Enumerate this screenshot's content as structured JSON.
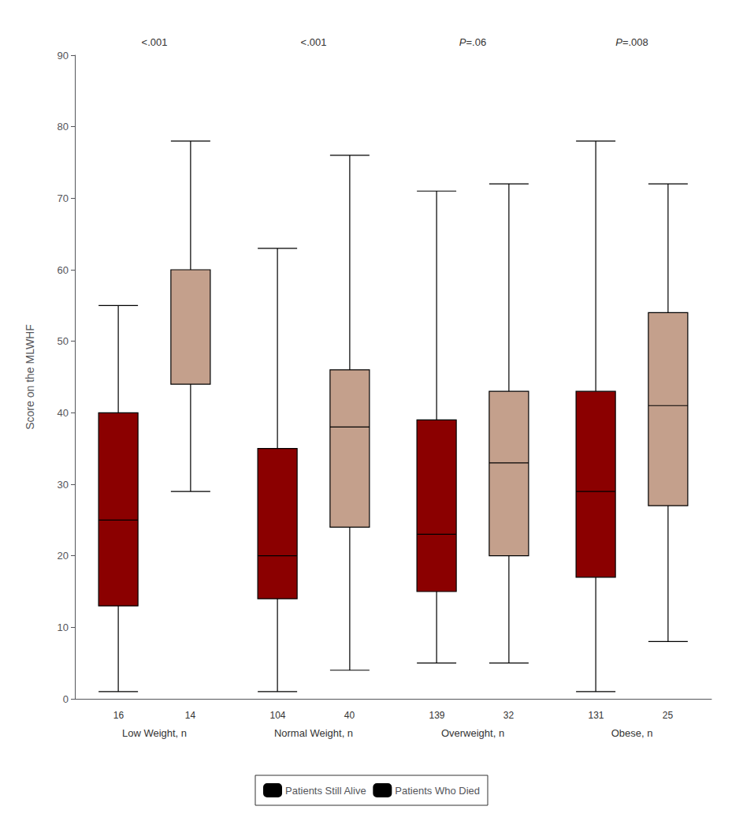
{
  "chart_data": {
    "type": "boxplot",
    "categories": [
      "Low Weight, n",
      "Normal Weight, n",
      "Overweight, n",
      "Obese, n"
    ],
    "annotations": [
      "<.001",
      "<.001",
      "P=.06",
      "P=.008"
    ],
    "ylabel": "Score on the MLWHF",
    "ylim": [
      0,
      90
    ],
    "yticks": [
      0,
      10,
      20,
      30,
      40,
      50,
      60,
      70,
      80,
      90
    ],
    "grid": false,
    "legend": "bottom",
    "series": [
      {
        "name": "Patients Still Alive",
        "color": "#8B0000",
        "n": [
          16,
          104,
          139,
          131
        ],
        "values": [
          [
            1,
            13,
            25,
            40,
            55
          ],
          [
            1,
            14,
            20,
            35,
            63
          ],
          [
            5,
            15,
            23,
            39,
            71
          ],
          [
            1,
            17,
            29,
            43,
            78
          ]
        ]
      },
      {
        "name": "Patients Who Died",
        "color": "#C4A08C",
        "n": [
          14,
          40,
          32,
          25
        ],
        "values": [
          [
            29,
            44,
            44,
            60,
            78
          ],
          [
            4,
            24,
            38,
            46,
            76
          ],
          [
            5,
            20,
            33,
            43,
            72
          ],
          [
            8,
            27,
            41,
            54,
            72
          ]
        ]
      }
    ]
  }
}
